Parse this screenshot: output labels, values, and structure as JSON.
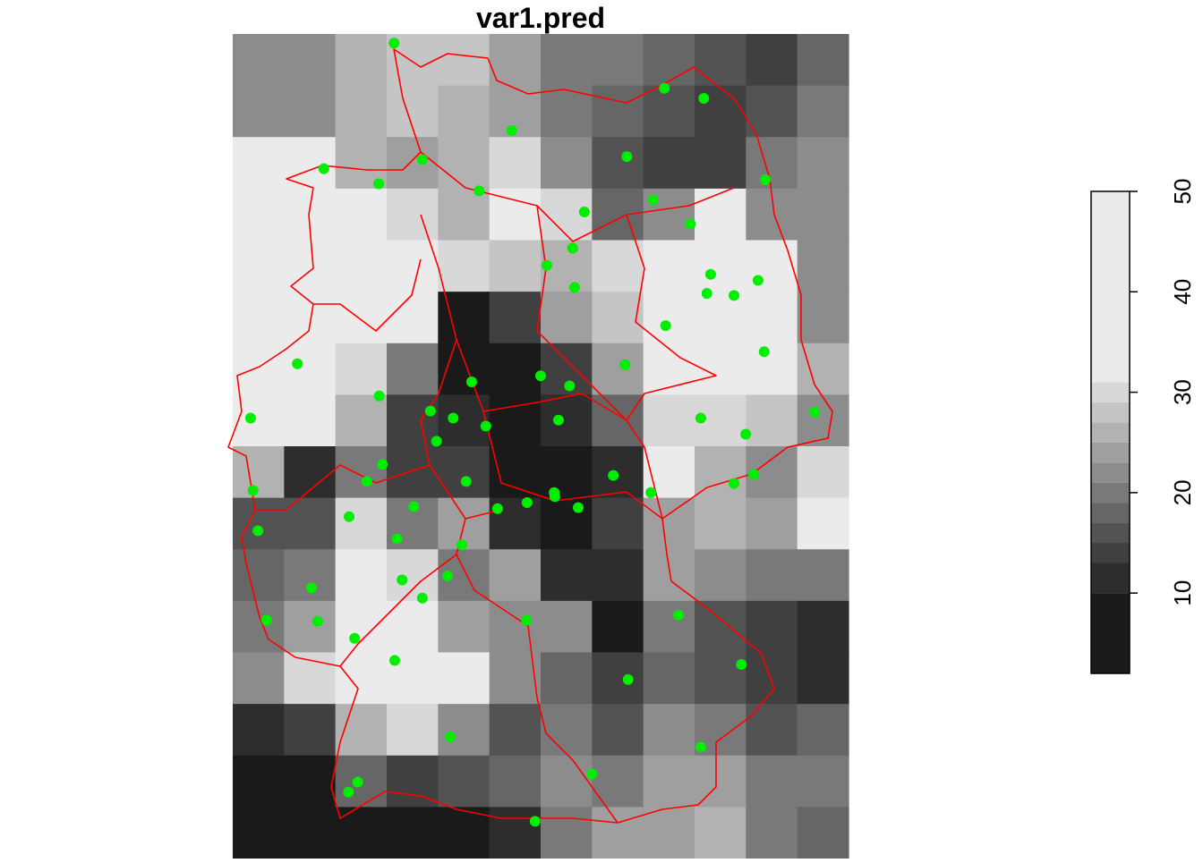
{
  "chart_data": {
    "type": "raster",
    "title": "var1.pred",
    "xlim": [
      5.5,
      15.5
    ],
    "ylim": [
      47.0,
      55.2
    ],
    "z": [
      [
        22,
        22,
        25,
        28,
        28,
        24,
        20,
        20,
        18,
        16,
        14,
        18
      ],
      [
        22,
        22,
        25,
        27,
        26,
        24,
        20,
        18,
        15,
        14,
        16,
        20
      ],
      [
        34,
        34,
        26,
        24,
        25,
        30,
        22,
        16,
        14,
        14,
        20,
        22
      ],
      [
        36,
        36,
        35,
        30,
        26,
        32,
        30,
        18,
        22,
        35,
        22,
        22
      ],
      [
        36,
        36,
        37,
        33,
        30,
        28,
        26,
        30,
        40,
        40,
        36,
        22
      ],
      [
        38,
        36,
        34,
        32,
        8,
        14,
        24,
        28,
        42,
        42,
        38,
        22
      ],
      [
        32,
        36,
        30,
        20,
        6,
        8,
        14,
        24,
        40,
        40,
        34,
        26
      ],
      [
        32,
        34,
        26,
        14,
        10,
        8,
        10,
        18,
        30,
        30,
        28,
        22
      ],
      [
        26,
        12,
        20,
        14,
        14,
        6,
        8,
        12,
        34,
        26,
        22,
        30
      ],
      [
        16,
        16,
        30,
        20,
        24,
        10,
        6,
        14,
        24,
        26,
        24,
        32
      ],
      [
        18,
        20,
        34,
        30,
        20,
        24,
        12,
        10,
        24,
        22,
        20,
        20
      ],
      [
        20,
        24,
        36,
        36,
        24,
        22,
        22,
        6,
        20,
        16,
        14,
        12
      ],
      [
        22,
        30,
        36,
        40,
        36,
        22,
        18,
        14,
        18,
        16,
        14,
        12
      ],
      [
        10,
        14,
        26,
        30,
        22,
        16,
        20,
        16,
        22,
        20,
        16,
        18
      ],
      [
        4,
        4,
        18,
        14,
        16,
        18,
        22,
        20,
        24,
        24,
        20,
        20
      ],
      [
        4,
        4,
        4,
        4,
        6,
        12,
        20,
        24,
        24,
        26,
        20,
        18
      ]
    ],
    "palette": [
      "#1a1a1a",
      "#ebebeb"
    ],
    "points": {
      "color": "#00ee00",
      "x": [
        8.12,
        12.51,
        13.15,
        10.03,
        8.58,
        6.98,
        7.87,
        11.9,
        9.5,
        14.15,
        12.33,
        11.21,
        12.93,
        11.02,
        10.6,
        13.26,
        14.03,
        13.2,
        13.64,
        11.05,
        12.53,
        14.13,
        6.55,
        11.87,
        10.5,
        9.38,
        10.97,
        7.88,
        8.71,
        9.08,
        5.79,
        10.79,
        9.61,
        14.95,
        13.1,
        8.81,
        13.83,
        7.93,
        13.96,
        7.68,
        9.29,
        11.68,
        13.64,
        5.83,
        12.29,
        10.72,
        10.73,
        10.28,
        11.11,
        8.44,
        9.8,
        7.39,
        5.91,
        8.17,
        9.22,
        8.99,
        8.25,
        6.78,
        8.58,
        6.05,
        6.88,
        10.27,
        12.74,
        7.48,
        8.13,
        13.76,
        11.92,
        9.03,
        13.1,
        11.33,
        7.53,
        7.38,
        10.41
      ],
      "y": [
        55.11,
        54.66,
        54.56,
        54.24,
        53.95,
        53.86,
        53.71,
        53.98,
        53.64,
        53.75,
        53.55,
        53.43,
        53.31,
        53.07,
        52.9,
        52.81,
        52.75,
        52.62,
        52.6,
        52.68,
        52.3,
        52.04,
        51.92,
        51.91,
        51.8,
        51.74,
        51.7,
        51.6,
        51.45,
        51.38,
        51.38,
        51.36,
        51.3,
        51.44,
        51.38,
        51.15,
        51.22,
        50.92,
        50.82,
        50.75,
        50.75,
        50.81,
        50.73,
        50.66,
        50.64,
        50.64,
        50.6,
        50.54,
        50.49,
        50.5,
        50.48,
        50.4,
        50.26,
        50.18,
        50.12,
        49.81,
        49.77,
        49.69,
        49.59,
        49.37,
        49.36,
        49.37,
        49.42,
        49.19,
        48.97,
        48.93,
        48.78,
        48.21,
        48.11,
        47.84,
        47.76,
        47.66,
        47.37
      ]
    },
    "colorbar": {
      "zlim": [
        2,
        50
      ],
      "ticks": [
        10,
        20,
        30,
        40,
        50
      ],
      "breaks": [
        2,
        10,
        13,
        15,
        17,
        19,
        21,
        23,
        25,
        27,
        29,
        31,
        50
      ]
    }
  }
}
